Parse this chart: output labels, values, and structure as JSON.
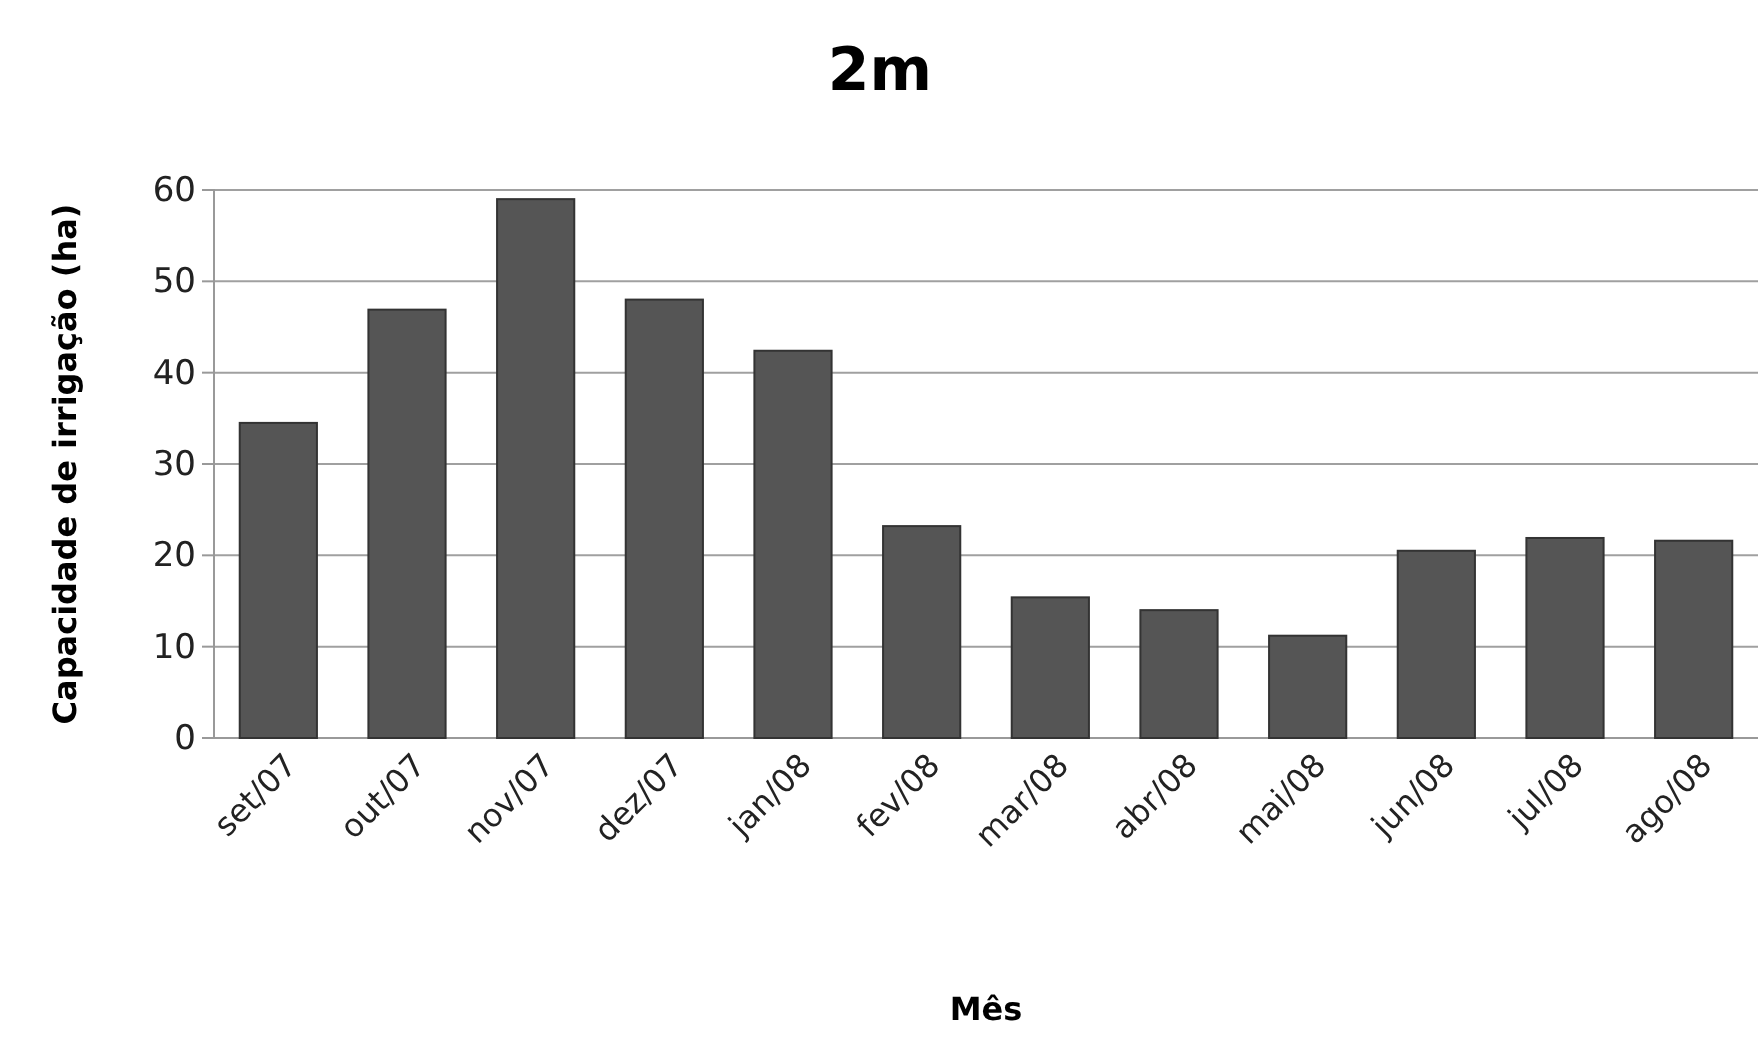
{
  "chart_data": {
    "type": "bar",
    "title": "2m",
    "xlabel": "Mês",
    "ylabel": "Capacidade de irrigação (ha)",
    "categories": [
      "set/07",
      "out/07",
      "nov/07",
      "dez/07",
      "jan/08",
      "fev/08",
      "mar/08",
      "abr/08",
      "mai/08",
      "jun/08",
      "jul/08",
      "ago/08"
    ],
    "values": [
      34.5,
      46.9,
      59.0,
      48.0,
      42.4,
      23.2,
      15.4,
      14.0,
      11.2,
      20.5,
      21.9,
      21.6
    ],
    "color": "#555555",
    "ylim": [
      0,
      60
    ],
    "yticks": [
      0,
      10,
      20,
      30,
      40,
      50,
      60
    ],
    "grid": "y"
  }
}
